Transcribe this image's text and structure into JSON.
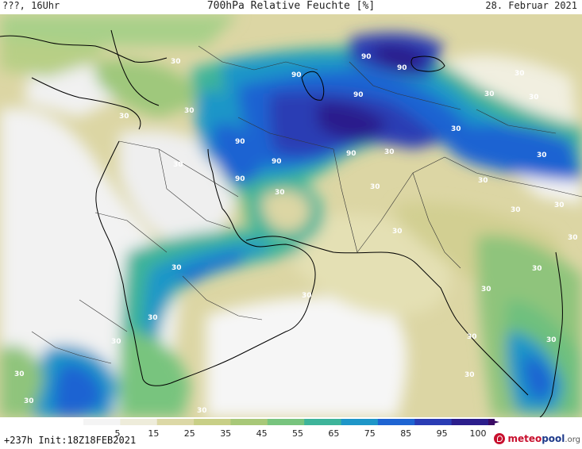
{
  "header": {
    "left": "???, 16Uhr",
    "title": "700hPa Relative Feuchte [%]",
    "date": "28. Februar 2021"
  },
  "footer": {
    "run": "+237h  Init:18Z18FEB2021",
    "logo_main": "meteo",
    "logo_pool": "pool",
    "logo_org": ".org"
  },
  "colorbar": {
    "labels": [
      "5",
      "15",
      "25",
      "35",
      "45",
      "55",
      "65",
      "75",
      "85",
      "95",
      "100"
    ],
    "colors": [
      "#f4f4f4",
      "#eeecda",
      "#dcd8a6",
      "#c8cf86",
      "#a8c878",
      "#78c47e",
      "#3eb49a",
      "#1e96c8",
      "#1e64d2",
      "#2a3cb4",
      "#2c1e8c",
      "#3a0a64"
    ]
  },
  "map": {
    "contour_labels": [
      "90",
      "90",
      "90",
      "90",
      "90",
      "90",
      "90",
      "90",
      "30",
      "30",
      "30",
      "30",
      "30",
      "30",
      "30",
      "30",
      "30",
      "30",
      "30",
      "30",
      "30",
      "30",
      "30",
      "30",
      "30",
      "30",
      "30",
      "30",
      "30",
      "30",
      "30",
      "30",
      "30",
      "30",
      "30",
      "30",
      "30"
    ]
  }
}
